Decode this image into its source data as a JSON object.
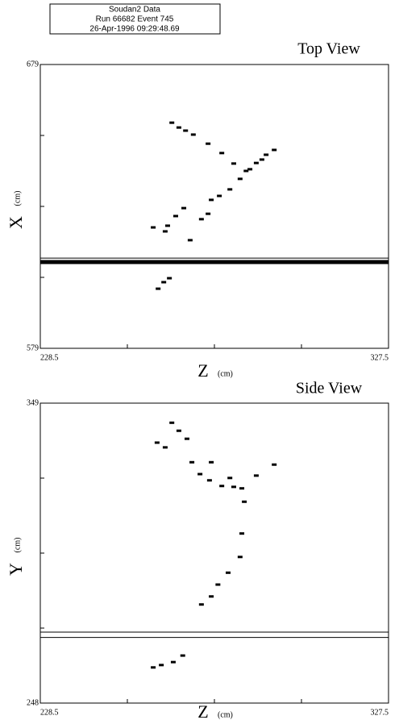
{
  "header": {
    "lines": [
      "Soudan2 Data",
      "Run 66682 Event 745",
      "26-Apr-1996 09:29:48.69"
    ]
  },
  "chart_data": [
    {
      "type": "scatter",
      "title": "Top View",
      "xlabel": "Z",
      "xlabel_unit": "(cm)",
      "ylabel": "X",
      "ylabel_unit": "(cm)",
      "xlim": [
        228.5,
        327.5
      ],
      "ylim": [
        579,
        679
      ],
      "xticks": [
        228.5,
        327.5
      ],
      "yticks": [
        579,
        679
      ],
      "xminorticks": [
        253.25,
        278,
        302.75
      ],
      "yminorticks": [
        604,
        629,
        654
      ],
      "hlines": [
        {
          "value": 610.8,
          "width": 1
        },
        {
          "value": 609.4,
          "width": 5
        }
      ],
      "series": [
        {
          "color": "#000000",
          "x": [
            265.9,
            267.9,
            269.8,
            272.0,
            276.2,
            280.1,
            283.5,
            287.0,
            289.9,
            292.7,
            295.0,
            291.5,
            288.1,
            285.3,
            282.4,
            279.4,
            277.1,
            269.3,
            267.0,
            264.7,
            260.6,
            264.0,
            276.2,
            274.3,
            271.1,
            265.2,
            263.6,
            262.0
          ],
          "values": [
            658.5,
            656.8,
            655.7,
            654.3,
            651.1,
            647.8,
            644.1,
            641.5,
            644.3,
            647.2,
            648.9,
            645.5,
            642.1,
            638.7,
            635.0,
            632.7,
            631.3,
            628.4,
            625.6,
            622.2,
            621.6,
            620.2,
            626.4,
            624.5,
            617.1,
            603.7,
            602.3,
            600.0
          ]
        }
      ]
    },
    {
      "type": "scatter",
      "title": "Side View",
      "xlabel": "Z",
      "xlabel_unit": "(cm)",
      "ylabel": "Y",
      "ylabel_unit": "(cm)",
      "xlim": [
        228.5,
        327.5
      ],
      "ylim": [
        248,
        349
      ],
      "xticks": [
        228.5,
        327.5
      ],
      "yticks": [
        248,
        349
      ],
      "xminorticks": [
        253.25,
        278,
        302.75
      ],
      "yminorticks": [
        273.25,
        298.5,
        323.75
      ],
      "hlines": [
        {
          "value": 271.9,
          "width": 1
        },
        {
          "value": 270.1,
          "width": 1
        }
      ],
      "series": [
        {
          "color": "#000000",
          "x": [
            265.9,
            267.9,
            270.2,
            261.7,
            264.0,
            271.6,
            273.9,
            276.6,
            280.1,
            283.5,
            285.8,
            277.1,
            282.4,
            289.9,
            295.0,
            286.5,
            285.8,
            285.3,
            281.9,
            279.0,
            277.1,
            274.3,
            269.0,
            266.3,
            262.9,
            260.6
          ],
          "values": [
            342.4,
            339.7,
            337.0,
            335.7,
            334.1,
            329.1,
            325.1,
            323.0,
            321.1,
            320.8,
            320.3,
            329.1,
            323.8,
            324.6,
            328.3,
            315.8,
            305.1,
            297.2,
            291.9,
            287.9,
            283.9,
            281.2,
            264.0,
            261.8,
            260.8,
            260.0
          ]
        }
      ]
    }
  ]
}
